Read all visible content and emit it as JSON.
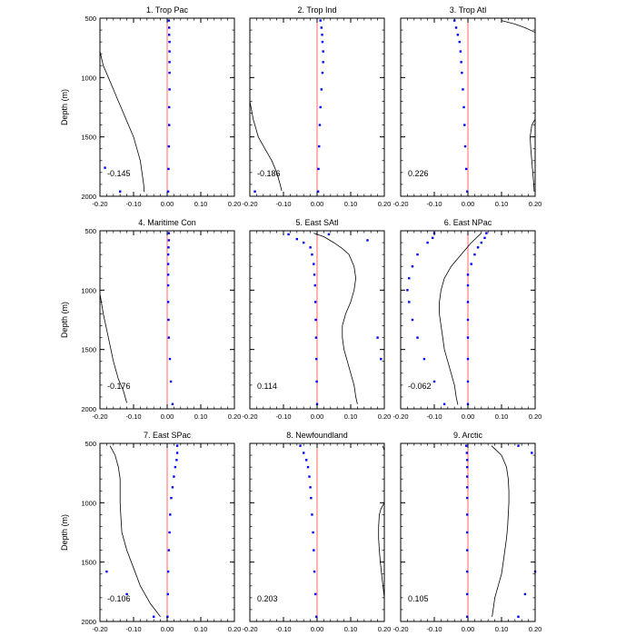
{
  "chart_data": {
    "type": "scatter",
    "xlim": [
      -0.2,
      0.2
    ],
    "ylim": [
      2000,
      500
    ],
    "y_reversed": true,
    "ylabel": "Depth (m)",
    "x_ticks": [
      -0.2,
      -0.1,
      0.0,
      0.1,
      0.2
    ],
    "x_tick_labels": [
      "-0.20",
      "-0.10",
      "0.00",
      "0.10",
      "0.20"
    ],
    "y_ticks": [
      500,
      1000,
      1500,
      2000
    ],
    "y_tick_labels": [
      "500",
      "1000",
      "1500",
      "2000"
    ],
    "reference_line": {
      "x": 0.0,
      "color": "#ff6a6a"
    },
    "point_color": "#0000ff",
    "curve_color": "#000000",
    "panels": [
      {
        "title": "1. Trop Pac",
        "annotation": "-0.145",
        "points": [
          [
            0.005,
            520
          ],
          [
            0.006,
            580
          ],
          [
            0.006,
            640
          ],
          [
            0.007,
            700
          ],
          [
            0.007,
            780
          ],
          [
            0.007,
            870
          ],
          [
            0.007,
            960
          ],
          [
            0.007,
            1100
          ],
          [
            0.006,
            1250
          ],
          [
            0.006,
            1400
          ],
          [
            0.005,
            1580
          ],
          [
            0.004,
            1770
          ],
          [
            0.003,
            1960
          ],
          [
            -0.185,
            1760
          ],
          [
            -0.14,
            1960
          ]
        ],
        "curve": [
          [
            -0.2,
            780
          ],
          [
            -0.19,
            900
          ],
          [
            -0.175,
            1000
          ],
          [
            -0.16,
            1100
          ],
          [
            -0.145,
            1200
          ],
          [
            -0.13,
            1300
          ],
          [
            -0.115,
            1400
          ],
          [
            -0.1,
            1500
          ],
          [
            -0.09,
            1600
          ],
          [
            -0.08,
            1700
          ],
          [
            -0.075,
            1800
          ],
          [
            -0.07,
            1900
          ],
          [
            -0.068,
            1965
          ]
        ]
      },
      {
        "title": "2. Trop Ind",
        "annotation": "-0.186",
        "points": [
          [
            0.01,
            520
          ],
          [
            0.013,
            580
          ],
          [
            0.015,
            640
          ],
          [
            0.016,
            700
          ],
          [
            0.018,
            780
          ],
          [
            0.018,
            870
          ],
          [
            0.016,
            960
          ],
          [
            0.013,
            1100
          ],
          [
            0.01,
            1250
          ],
          [
            0.008,
            1400
          ],
          [
            0.006,
            1580
          ],
          [
            0.004,
            1770
          ],
          [
            0.003,
            1960
          ],
          [
            -0.185,
            1960
          ]
        ],
        "curve": [
          [
            -0.2,
            1200
          ],
          [
            -0.19,
            1350
          ],
          [
            -0.175,
            1500
          ],
          [
            -0.155,
            1600
          ],
          [
            -0.135,
            1700
          ],
          [
            -0.12,
            1800
          ],
          [
            -0.11,
            1900
          ],
          [
            -0.105,
            1955
          ]
        ]
      },
      {
        "title": "3. Trop Atl",
        "annotation": "0.226",
        "points": [
          [
            -0.04,
            520
          ],
          [
            -0.035,
            580
          ],
          [
            -0.03,
            640
          ],
          [
            -0.025,
            700
          ],
          [
            -0.022,
            780
          ],
          [
            -0.02,
            870
          ],
          [
            -0.018,
            960
          ],
          [
            -0.015,
            1100
          ],
          [
            -0.012,
            1250
          ],
          [
            -0.01,
            1400
          ],
          [
            -0.008,
            1580
          ],
          [
            -0.005,
            1770
          ],
          [
            -0.002,
            1960
          ]
        ],
        "curve": [
          [
            0.1,
            520
          ],
          [
            0.14,
            550
          ],
          [
            0.17,
            580
          ],
          [
            0.2,
            620
          ]
        ],
        "curve2": [
          [
            0.2,
            1350
          ],
          [
            0.19,
            1400
          ],
          [
            0.185,
            1500
          ],
          [
            0.187,
            1600
          ],
          [
            0.19,
            1700
          ],
          [
            0.193,
            1800
          ],
          [
            0.196,
            1900
          ],
          [
            0.197,
            1960
          ]
        ]
      },
      {
        "title": "4. Maritime Con",
        "annotation": "-0.176",
        "points": [
          [
            0.005,
            520
          ],
          [
            0.005,
            580
          ],
          [
            0.004,
            640
          ],
          [
            0.003,
            700
          ],
          [
            0.003,
            780
          ],
          [
            0.003,
            870
          ],
          [
            0.003,
            960
          ],
          [
            0.003,
            1100
          ],
          [
            0.004,
            1250
          ],
          [
            0.005,
            1400
          ],
          [
            0.008,
            1580
          ],
          [
            0.011,
            1770
          ],
          [
            0.016,
            1960
          ]
        ],
        "curve": [
          [
            -0.2,
            1030
          ],
          [
            -0.19,
            1200
          ],
          [
            -0.175,
            1400
          ],
          [
            -0.16,
            1600
          ],
          [
            -0.145,
            1750
          ],
          [
            -0.13,
            1850
          ],
          [
            -0.12,
            1950
          ]
        ]
      },
      {
        "title": "5. East SAtl",
        "annotation": "0.114",
        "points": [
          [
            -0.085,
            530
          ],
          [
            -0.06,
            570
          ],
          [
            -0.04,
            600
          ],
          [
            -0.02,
            640
          ],
          [
            -0.015,
            700
          ],
          [
            -0.01,
            780
          ],
          [
            -0.008,
            870
          ],
          [
            -0.006,
            960
          ],
          [
            -0.005,
            1100
          ],
          [
            -0.004,
            1250
          ],
          [
            -0.003,
            1400
          ],
          [
            -0.002,
            1580
          ],
          [
            -0.001,
            1770
          ],
          [
            0.0,
            1960
          ],
          [
            0.035,
            530
          ],
          [
            0.15,
            580
          ],
          [
            0.18,
            1400
          ],
          [
            0.19,
            1580
          ]
        ],
        "curve": [
          [
            -0.01,
            520
          ],
          [
            0.02,
            550
          ],
          [
            0.05,
            600
          ],
          [
            0.075,
            650
          ],
          [
            0.095,
            700
          ],
          [
            0.11,
            800
          ],
          [
            0.115,
            900
          ],
          [
            0.11,
            1000
          ],
          [
            0.1,
            1100
          ],
          [
            0.085,
            1200
          ],
          [
            0.075,
            1300
          ],
          [
            0.075,
            1400
          ],
          [
            0.08,
            1500
          ],
          [
            0.09,
            1600
          ],
          [
            0.1,
            1700
          ],
          [
            0.11,
            1800
          ],
          [
            0.115,
            1900
          ],
          [
            0.12,
            1960
          ]
        ]
      },
      {
        "title": "6. East NPac",
        "annotation": "-0.062",
        "points": [
          [
            -0.1,
            520
          ],
          [
            -0.105,
            560
          ],
          [
            -0.12,
            600
          ],
          [
            -0.15,
            700
          ],
          [
            -0.165,
            800
          ],
          [
            -0.175,
            900
          ],
          [
            -0.18,
            1000
          ],
          [
            -0.175,
            1100
          ],
          [
            -0.165,
            1250
          ],
          [
            -0.15,
            1400
          ],
          [
            -0.13,
            1580
          ],
          [
            -0.1,
            1770
          ],
          [
            -0.07,
            1960
          ],
          [
            0.055,
            520
          ],
          [
            0.05,
            560
          ],
          [
            0.04,
            600
          ],
          [
            0.03,
            640
          ],
          [
            0.02,
            700
          ],
          [
            0.01,
            780
          ],
          [
            0.0,
            870
          ],
          [
            0.0,
            960
          ],
          [
            0.0,
            1100
          ],
          [
            0.0,
            1250
          ],
          [
            0.0,
            1400
          ],
          [
            0.0,
            1580
          ],
          [
            0.0,
            1770
          ],
          [
            0.0,
            1960
          ]
        ],
        "curve": [
          [
            0.04,
            520
          ],
          [
            0.01,
            600
          ],
          [
            -0.02,
            700
          ],
          [
            -0.05,
            800
          ],
          [
            -0.07,
            900
          ],
          [
            -0.08,
            1000
          ],
          [
            -0.085,
            1100
          ],
          [
            -0.085,
            1200
          ],
          [
            -0.08,
            1300
          ],
          [
            -0.075,
            1400
          ],
          [
            -0.07,
            1500
          ],
          [
            -0.06,
            1600
          ],
          [
            -0.05,
            1700
          ],
          [
            -0.04,
            1800
          ],
          [
            -0.035,
            1900
          ],
          [
            -0.03,
            1965
          ]
        ]
      },
      {
        "title": "7. East SPac",
        "annotation": "-0.106",
        "points": [
          [
            0.03,
            520
          ],
          [
            0.03,
            580
          ],
          [
            0.028,
            640
          ],
          [
            0.024,
            700
          ],
          [
            0.02,
            780
          ],
          [
            0.016,
            870
          ],
          [
            0.012,
            960
          ],
          [
            0.009,
            1100
          ],
          [
            0.007,
            1250
          ],
          [
            0.005,
            1400
          ],
          [
            0.003,
            1580
          ],
          [
            0.002,
            1770
          ],
          [
            0.001,
            1960
          ],
          [
            -0.18,
            1580
          ],
          [
            -0.12,
            1770
          ],
          [
            -0.04,
            1960
          ]
        ],
        "curve": [
          [
            -0.17,
            520
          ],
          [
            -0.155,
            600
          ],
          [
            -0.145,
            700
          ],
          [
            -0.14,
            800
          ],
          [
            -0.14,
            900
          ],
          [
            -0.14,
            1000
          ],
          [
            -0.138,
            1100
          ],
          [
            -0.135,
            1250
          ],
          [
            -0.12,
            1400
          ],
          [
            -0.1,
            1550
          ],
          [
            -0.08,
            1700
          ],
          [
            -0.05,
            1850
          ],
          [
            -0.02,
            1960
          ]
        ]
      },
      {
        "title": "8. Newfoundland",
        "annotation": "0.203",
        "points": [
          [
            -0.05,
            520
          ],
          [
            -0.04,
            580
          ],
          [
            -0.032,
            640
          ],
          [
            -0.027,
            700
          ],
          [
            -0.023,
            780
          ],
          [
            -0.02,
            870
          ],
          [
            -0.018,
            960
          ],
          [
            -0.015,
            1100
          ],
          [
            -0.012,
            1250
          ],
          [
            -0.01,
            1400
          ],
          [
            -0.008,
            1580
          ],
          [
            -0.005,
            1770
          ],
          [
            -0.002,
            1960
          ]
        ],
        "curve": [
          [
            0.195,
            520
          ],
          [
            0.2,
            560
          ]
        ],
        "curve2": [
          [
            0.2,
            1000
          ],
          [
            0.19,
            1050
          ],
          [
            0.185,
            1100
          ],
          [
            0.183,
            1200
          ],
          [
            0.183,
            1300
          ],
          [
            0.185,
            1400
          ],
          [
            0.188,
            1500
          ],
          [
            0.192,
            1600
          ],
          [
            0.196,
            1700
          ],
          [
            0.2,
            1800
          ]
        ]
      },
      {
        "title": "9. Arctic",
        "annotation": "0.105",
        "points": [
          [
            -0.005,
            520
          ],
          [
            -0.003,
            580
          ],
          [
            -0.002,
            640
          ],
          [
            -0.002,
            700
          ],
          [
            -0.002,
            780
          ],
          [
            -0.002,
            870
          ],
          [
            -0.002,
            960
          ],
          [
            -0.002,
            1100
          ],
          [
            -0.002,
            1250
          ],
          [
            -0.002,
            1400
          ],
          [
            -0.002,
            1580
          ],
          [
            -0.002,
            1770
          ],
          [
            -0.002,
            1960
          ],
          [
            0.15,
            520
          ],
          [
            0.19,
            580
          ],
          [
            0.2,
            1580
          ],
          [
            0.17,
            1770
          ],
          [
            0.15,
            1960
          ]
        ],
        "curve": [
          [
            0.07,
            520
          ],
          [
            0.1,
            600
          ],
          [
            0.115,
            700
          ],
          [
            0.12,
            800
          ],
          [
            0.122,
            900
          ],
          [
            0.122,
            1000
          ],
          [
            0.12,
            1100
          ],
          [
            0.118,
            1200
          ],
          [
            0.115,
            1300
          ],
          [
            0.11,
            1400
          ],
          [
            0.105,
            1500
          ],
          [
            0.1,
            1600
          ],
          [
            0.09,
            1700
          ],
          [
            0.08,
            1800
          ],
          [
            0.075,
            1900
          ],
          [
            0.072,
            1960
          ]
        ]
      }
    ]
  }
}
